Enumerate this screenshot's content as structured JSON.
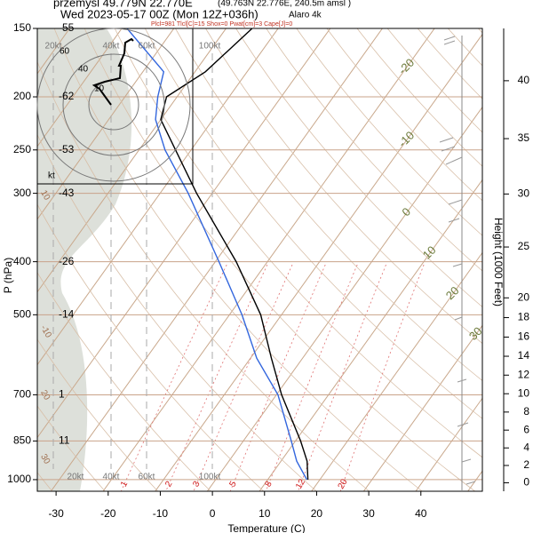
{
  "chart_data": {
    "type": "skewt",
    "title": "przemysl 49.779N 22.770E",
    "location_note": "(49.763N 22.776E, 240.5m amsl )",
    "subtitle": "Wed 2023-05-17 00Z (Mon 12Z+036h)",
    "model": "Alaro 4k",
    "indices": "Plcl=981 Tlcl[C]=15 Shox=0 Pwat[cm]=3 Cape[J]=0",
    "xlabel": "Temperature (C)",
    "ylabel": "P (hPa)",
    "y2label": "Height (1000 Feet)",
    "xlim": [
      -33.6,
      51.8
    ],
    "xticks": [
      -30,
      -20,
      -10,
      0,
      10,
      20,
      30,
      40
    ],
    "ylim": [
      1050,
      150
    ],
    "yticks": [
      150,
      200,
      250,
      300,
      400,
      500,
      700,
      850,
      1000
    ],
    "level_temperatures": [
      -55,
      -62,
      -53,
      -43,
      -26,
      -14,
      1,
      11,
      null
    ],
    "y2ticks": [
      0,
      2,
      4,
      6,
      8,
      10,
      12,
      14,
      16,
      18,
      20,
      25,
      30,
      35,
      40
    ],
    "isotherm_labels": [
      -20,
      -10,
      0,
      10,
      20,
      30
    ],
    "adiabat_labels": [
      "10",
      "-10",
      "20",
      "30"
    ],
    "mixing_ratios": [
      1,
      2,
      3,
      5,
      8,
      12,
      20
    ],
    "wind_scale_labels": [
      "20kt",
      "40kt",
      "60kt",
      "100kt"
    ],
    "hodograph_unit": "kt",
    "hodograph_labels": [
      "60",
      "40",
      "10"
    ],
    "pressure": [
      1000,
      925,
      850,
      700,
      600,
      500,
      400,
      300,
      250,
      220,
      200,
      180,
      150
    ],
    "series": [
      {
        "color": "#000000",
        "values": [
          17.7,
          15,
          11,
          1,
          -6,
          -14,
          -26,
          -43,
          -53,
          -60,
          -62,
          -58,
          -55
        ]
      },
      {
        "color": "#3366dd",
        "values": [
          17.5,
          13,
          9.2,
          0.3,
          -8.8,
          -17.6,
          -29.3,
          -44.6,
          -55,
          -61,
          -63.7,
          -66,
          -79
        ]
      }
    ]
  }
}
